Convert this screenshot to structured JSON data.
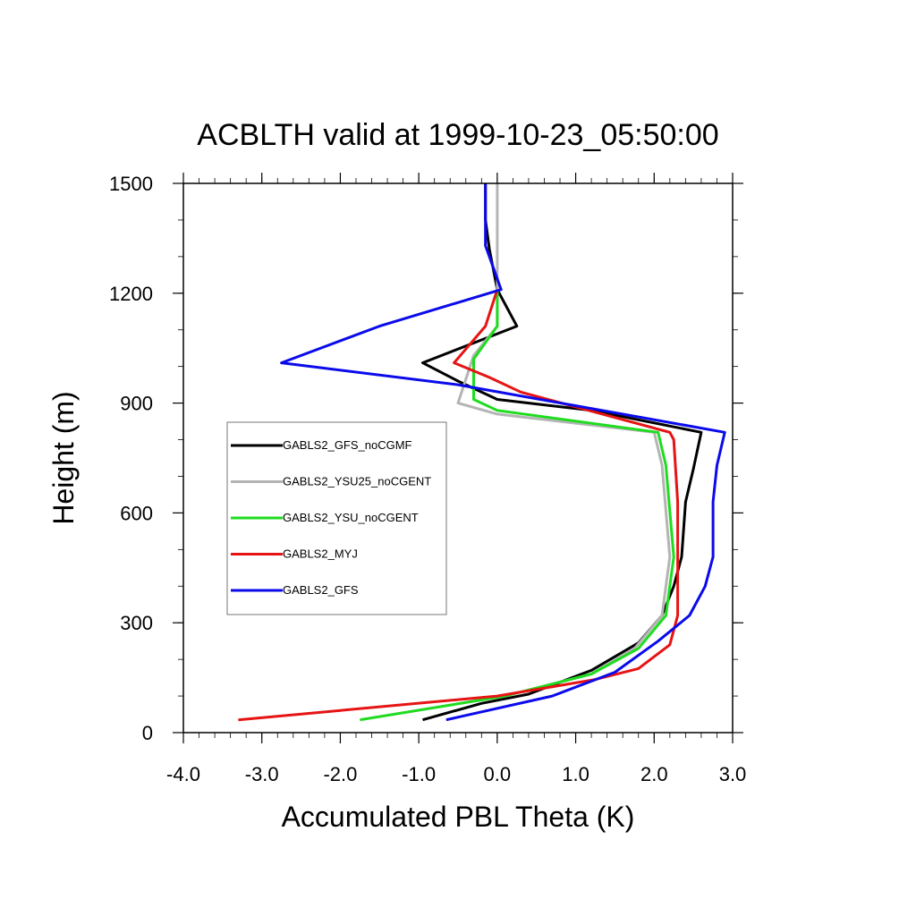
{
  "chart_data": {
    "type": "line",
    "title": "ACBLTH valid at 1999-10-23_05:50:00",
    "xlabel": "Accumulated PBL Theta (K)",
    "ylabel": "Height (m)",
    "xlim": [
      -4.0,
      3.0
    ],
    "ylim": [
      0,
      1500
    ],
    "xticks": [
      "-4.0",
      "-3.0",
      "-2.0",
      "-1.0",
      "0.0",
      "1.0",
      "2.0",
      "3.0"
    ],
    "yticks": [
      "0",
      "300",
      "600",
      "900",
      "1200",
      "1500"
    ],
    "grid": false,
    "legend_position": "left-middle",
    "series": [
      {
        "name": "GABLS2_GFS_noCGMF",
        "color": "#000000",
        "points": [
          [
            -0.95,
            35
          ],
          [
            -0.2,
            80
          ],
          [
            0.4,
            105
          ],
          [
            1.2,
            170
          ],
          [
            1.8,
            245
          ],
          [
            2.1,
            320
          ],
          [
            2.25,
            400
          ],
          [
            2.35,
            480
          ],
          [
            2.4,
            630
          ],
          [
            2.5,
            720
          ],
          [
            2.6,
            820
          ],
          [
            1.2,
            880
          ],
          [
            0.0,
            910
          ],
          [
            -0.5,
            960
          ],
          [
            -0.95,
            1010
          ],
          [
            0.25,
            1110
          ],
          [
            0.0,
            1210
          ],
          [
            -0.1,
            1320
          ],
          [
            -0.15,
            1400
          ],
          [
            -0.15,
            1500
          ]
        ]
      },
      {
        "name": "GABLS2_YSU25_noCGENT",
        "color": "#b4b4b4",
        "points": [
          [
            -1.75,
            35
          ],
          [
            0.1,
            100
          ],
          [
            1.2,
            160
          ],
          [
            1.75,
            230
          ],
          [
            2.1,
            320
          ],
          [
            2.2,
            480
          ],
          [
            2.1,
            730
          ],
          [
            2.0,
            820
          ],
          [
            0.0,
            870
          ],
          [
            -0.5,
            900
          ],
          [
            -0.3,
            1030
          ],
          [
            0.0,
            1110
          ],
          [
            0.0,
            1210
          ],
          [
            0.0,
            1350
          ],
          [
            0.0,
            1500
          ]
        ]
      },
      {
        "name": "GABLS2_YSU_noCGENT",
        "color": "#1edc1e",
        "points": [
          [
            -1.75,
            35
          ],
          [
            0.1,
            100
          ],
          [
            1.2,
            160
          ],
          [
            1.8,
            230
          ],
          [
            2.15,
            320
          ],
          [
            2.25,
            480
          ],
          [
            2.15,
            730
          ],
          [
            2.05,
            820
          ],
          [
            0.0,
            880
          ],
          [
            -0.3,
            910
          ],
          [
            -0.3,
            1020
          ],
          [
            0.0,
            1110
          ],
          [
            0.0,
            1210
          ]
        ]
      },
      {
        "name": "GABLS2_MYJ",
        "color": "#e61414",
        "points": [
          [
            -3.3,
            35
          ],
          [
            0.0,
            100
          ],
          [
            1.25,
            145
          ],
          [
            1.8,
            175
          ],
          [
            2.2,
            240
          ],
          [
            2.3,
            320
          ],
          [
            2.3,
            480
          ],
          [
            2.3,
            630
          ],
          [
            2.25,
            800
          ],
          [
            2.2,
            820
          ],
          [
            0.3,
            930
          ],
          [
            -0.1,
            970
          ],
          [
            -0.55,
            1010
          ],
          [
            -0.15,
            1110
          ],
          [
            0.0,
            1210
          ]
        ]
      },
      {
        "name": "GABLS2_GFS",
        "color": "#0a0aeb",
        "points": [
          [
            -0.65,
            35
          ],
          [
            0.7,
            100
          ],
          [
            1.5,
            165
          ],
          [
            2.05,
            250
          ],
          [
            2.45,
            320
          ],
          [
            2.65,
            400
          ],
          [
            2.75,
            480
          ],
          [
            2.75,
            630
          ],
          [
            2.8,
            730
          ],
          [
            2.9,
            820
          ],
          [
            -0.5,
            950
          ],
          [
            -2.75,
            1010
          ],
          [
            -1.5,
            1110
          ],
          [
            0.05,
            1210
          ],
          [
            -0.15,
            1330
          ],
          [
            -0.15,
            1500
          ]
        ]
      }
    ]
  }
}
